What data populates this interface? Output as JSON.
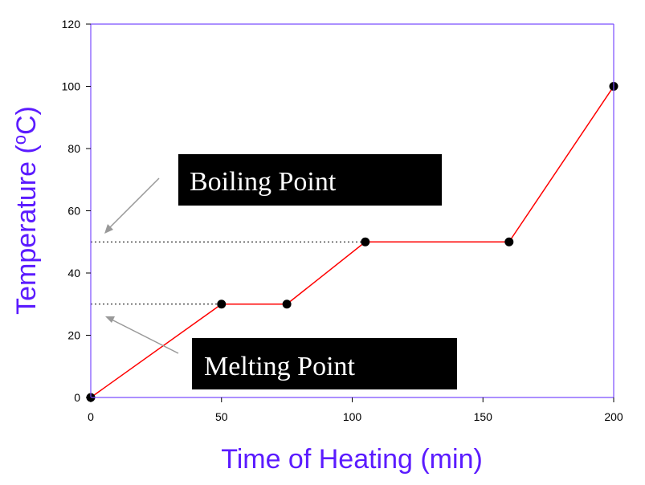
{
  "chart_data": {
    "type": "line",
    "xlabel": "Time of Heating (min)",
    "ylabel_main": "Temperature (",
    "ylabel_super": "o",
    "ylabel_end": "C)",
    "xlim": [
      0,
      200
    ],
    "ylim": [
      0,
      120
    ],
    "xticks": [
      0,
      50,
      100,
      150,
      200
    ],
    "yticks": [
      0,
      20,
      40,
      60,
      80,
      100,
      120
    ],
    "grid": false,
    "series": [
      {
        "x": [
          0,
          50,
          75,
          105,
          160,
          200
        ],
        "y": [
          0,
          30,
          30,
          50,
          50,
          100
        ],
        "color": "#ff0000",
        "marker_color": "#000000"
      }
    ],
    "reference_lines": [
      {
        "y": 50,
        "x_end": 105
      },
      {
        "y": 30,
        "x_end": 50
      }
    ],
    "annotations": [
      {
        "text": "Boiling Point"
      },
      {
        "text": "Melting Point"
      }
    ],
    "colors": {
      "axis_frame": "#7b4dff",
      "axis_title": "#5b1bff",
      "line": "#ff0000",
      "marker": "#000000",
      "annotation_box": "#000000",
      "annotation_text": "#ffffff",
      "arrow": "#999999"
    }
  }
}
